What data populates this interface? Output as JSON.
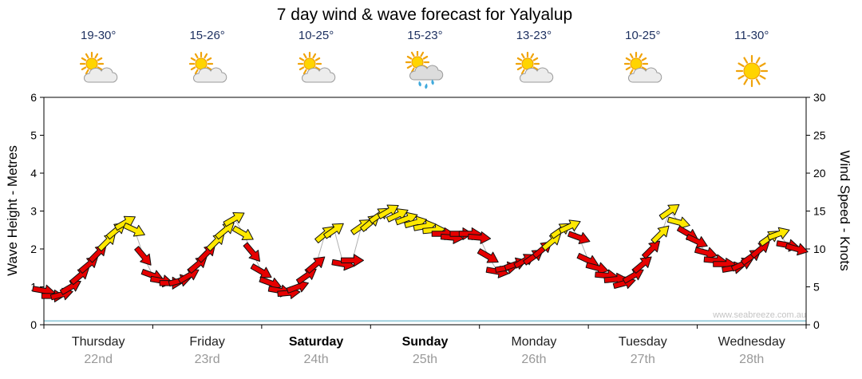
{
  "title": "7 day wind & wave forecast for Yalyalup",
  "watermark": "www.seabreeze.com.au",
  "axes": {
    "left_label": "Wave Height - Metres",
    "right_label": "Wind Speed - Knots",
    "left_ticks": [
      0,
      1,
      2,
      3,
      4,
      5,
      6
    ],
    "right_ticks": [
      0,
      5,
      10,
      15,
      20,
      25,
      30
    ]
  },
  "days": [
    {
      "name": "Thursday",
      "date": "22nd",
      "temp": "19-30°",
      "icon": "sun-cloud",
      "bold": false
    },
    {
      "name": "Friday",
      "date": "23rd",
      "temp": "15-26°",
      "icon": "sun-cloud",
      "bold": false
    },
    {
      "name": "Saturday",
      "date": "24th",
      "temp": "10-25°",
      "icon": "sun-cloud",
      "bold": true
    },
    {
      "name": "Sunday",
      "date": "25th",
      "temp": "15-23°",
      "icon": "sun-rain",
      "bold": true
    },
    {
      "name": "Monday",
      "date": "26th",
      "temp": "13-23°",
      "icon": "sun-cloud",
      "bold": false
    },
    {
      "name": "Tuesday",
      "date": "27th",
      "temp": "10-25°",
      "icon": "sun-cloud",
      "bold": false
    },
    {
      "name": "Wednesday",
      "date": "28th",
      "temp": "11-30°",
      "icon": "sun",
      "bold": false
    }
  ],
  "colors": {
    "arrow_red": "#e60000",
    "arrow_yellow": "#ffe800",
    "arrow_outline": "#111111",
    "trend_line": "#b0b0b0",
    "wave_line": "#9fcfdd",
    "axis": "#000000"
  },
  "chart_data": {
    "type": "wind-arrows",
    "title": "7 day wind & wave forecast for Yalyalup",
    "x_axis": "time (hours across 7 days, 2-hourly points)",
    "ylabel_left": "Wave Height - Metres",
    "ylabel_right": "Wind Speed - Knots",
    "ylim_wave": [
      0,
      6
    ],
    "ylim_knots": [
      0,
      30
    ],
    "x_range_hours": [
      0,
      168
    ],
    "wave_metres_flat": 0.1,
    "columns": [
      "hour",
      "knots",
      "dir_deg",
      "color"
    ],
    "wind_points": [
      [
        0,
        4.5,
        10,
        "r"
      ],
      [
        2,
        3.8,
        0,
        "r"
      ],
      [
        4,
        4.0,
        -15,
        "r"
      ],
      [
        6,
        5.0,
        -30,
        "r"
      ],
      [
        8,
        6.5,
        -40,
        "r"
      ],
      [
        10,
        8.0,
        -40,
        "r"
      ],
      [
        12,
        9.5,
        -45,
        "r"
      ],
      [
        14,
        11.0,
        -45,
        "y"
      ],
      [
        16,
        12.5,
        -40,
        "y"
      ],
      [
        18,
        13.5,
        -30,
        "y"
      ],
      [
        20,
        12.5,
        25,
        "y"
      ],
      [
        22,
        9.0,
        50,
        "r"
      ],
      [
        24,
        6.5,
        20,
        "r"
      ],
      [
        26,
        5.8,
        10,
        "r"
      ],
      [
        28,
        5.5,
        0,
        "r"
      ],
      [
        30,
        5.8,
        -15,
        "r"
      ],
      [
        32,
        6.5,
        -30,
        "r"
      ],
      [
        34,
        8.0,
        -40,
        "r"
      ],
      [
        36,
        9.5,
        -45,
        "r"
      ],
      [
        38,
        11.0,
        -45,
        "y"
      ],
      [
        40,
        12.5,
        -40,
        "y"
      ],
      [
        42,
        14.0,
        -30,
        "y"
      ],
      [
        44,
        12.0,
        30,
        "y"
      ],
      [
        46,
        9.5,
        50,
        "r"
      ],
      [
        48,
        7.0,
        30,
        "r"
      ],
      [
        50,
        5.5,
        20,
        "r"
      ],
      [
        52,
        4.5,
        10,
        "r"
      ],
      [
        54,
        4.2,
        -5,
        "r"
      ],
      [
        56,
        5.0,
        -20,
        "r"
      ],
      [
        58,
        6.5,
        -35,
        "r"
      ],
      [
        60,
        8.0,
        -40,
        "r"
      ],
      [
        62,
        12.0,
        -40,
        "y"
      ],
      [
        64,
        12.5,
        -35,
        "y"
      ],
      [
        66,
        8.0,
        10,
        "r"
      ],
      [
        68,
        8.5,
        0,
        "r"
      ],
      [
        70,
        13.0,
        -35,
        "y"
      ],
      [
        72,
        13.5,
        -40,
        "y"
      ],
      [
        74,
        14.5,
        -35,
        "y"
      ],
      [
        76,
        15.0,
        -30,
        "y"
      ],
      [
        78,
        14.5,
        -25,
        "y"
      ],
      [
        80,
        14.0,
        -20,
        "y"
      ],
      [
        82,
        13.5,
        -15,
        "y"
      ],
      [
        84,
        13.0,
        -10,
        "y"
      ],
      [
        86,
        12.5,
        -5,
        "y"
      ],
      [
        88,
        12.0,
        0,
        "r"
      ],
      [
        90,
        11.5,
        5,
        "r"
      ],
      [
        92,
        12.0,
        0,
        "r"
      ],
      [
        94,
        12.0,
        0,
        "r"
      ],
      [
        96,
        11.5,
        5,
        "r"
      ],
      [
        98,
        9.0,
        30,
        "r"
      ],
      [
        100,
        7.0,
        10,
        "r"
      ],
      [
        102,
        7.5,
        -10,
        "r"
      ],
      [
        104,
        8.0,
        -20,
        "r"
      ],
      [
        106,
        8.5,
        -30,
        "r"
      ],
      [
        108,
        9.0,
        -35,
        "r"
      ],
      [
        110,
        10.0,
        -40,
        "r"
      ],
      [
        112,
        11.0,
        -40,
        "y"
      ],
      [
        114,
        12.5,
        -35,
        "y"
      ],
      [
        116,
        13.0,
        -25,
        "y"
      ],
      [
        118,
        11.5,
        20,
        "r"
      ],
      [
        120,
        8.5,
        25,
        "r"
      ],
      [
        122,
        7.5,
        15,
        "r"
      ],
      [
        124,
        6.5,
        5,
        "r"
      ],
      [
        126,
        6.0,
        -5,
        "r"
      ],
      [
        128,
        5.5,
        -15,
        "r"
      ],
      [
        130,
        6.5,
        -30,
        "r"
      ],
      [
        132,
        8.0,
        -40,
        "r"
      ],
      [
        134,
        10.0,
        -45,
        "r"
      ],
      [
        136,
        12.0,
        -45,
        "y"
      ],
      [
        138,
        15.0,
        -35,
        "y"
      ],
      [
        140,
        13.5,
        15,
        "y"
      ],
      [
        142,
        12.0,
        30,
        "r"
      ],
      [
        144,
        11.0,
        25,
        "r"
      ],
      [
        146,
        9.5,
        15,
        "r"
      ],
      [
        148,
        8.5,
        5,
        "r"
      ],
      [
        150,
        8.0,
        0,
        "r"
      ],
      [
        152,
        7.5,
        -10,
        "r"
      ],
      [
        154,
        8.0,
        -25,
        "r"
      ],
      [
        156,
        9.0,
        -35,
        "r"
      ],
      [
        158,
        10.0,
        -40,
        "r"
      ],
      [
        160,
        11.5,
        -35,
        "y"
      ],
      [
        162,
        12.0,
        -20,
        "y"
      ],
      [
        164,
        10.5,
        10,
        "r"
      ],
      [
        166,
        10.0,
        15,
        "r"
      ]
    ]
  }
}
